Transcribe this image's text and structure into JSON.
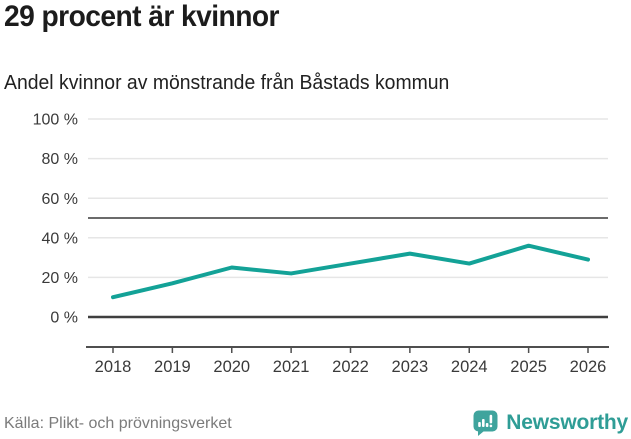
{
  "header": {
    "title": "29 procent är kvinnor",
    "subtitle": "Andel kvinnor av mönstrande från Båstads kommun"
  },
  "chart_data": {
    "type": "line",
    "title": "29 procent är kvinnor",
    "subtitle": "Andel kvinnor av mönstrande från Båstads kommun",
    "categories": [
      "2018",
      "2019",
      "2020",
      "2021",
      "2022",
      "2023",
      "2024",
      "2025",
      "2026"
    ],
    "series": [
      {
        "name": "Andel kvinnor av mönstrande",
        "values": [
          10,
          17,
          25,
          22,
          27,
          32,
          27,
          36,
          29
        ]
      }
    ],
    "xlabel": "",
    "ylabel": "",
    "ylim": [
      0,
      100
    ],
    "yticks": [
      0,
      20,
      40,
      60,
      80,
      100
    ],
    "ytick_format": "{v} %",
    "reference_line_y": 50,
    "grid": true,
    "legend_position": "none"
  },
  "footer": {
    "source": "Källa: Plikt- och prövningsverket",
    "brand": "Newsworthy"
  },
  "icons": {
    "brand_logo": "newsworthy-speech-bubble-bar-chart-icon"
  },
  "colors": {
    "line": "#13a297",
    "grid": "#e6e6e6",
    "reference_line": "#6b6b6b",
    "zero_line": "#3f3f3f",
    "axis": "#4f4f4f",
    "tick_text": "#3a3a3a",
    "title_text": "#1c1c1c",
    "subtitle_text": "#212121",
    "source_text": "#7b7b7b",
    "brand_text": "#2f9d96",
    "brand_icon": "#3fa49d"
  }
}
